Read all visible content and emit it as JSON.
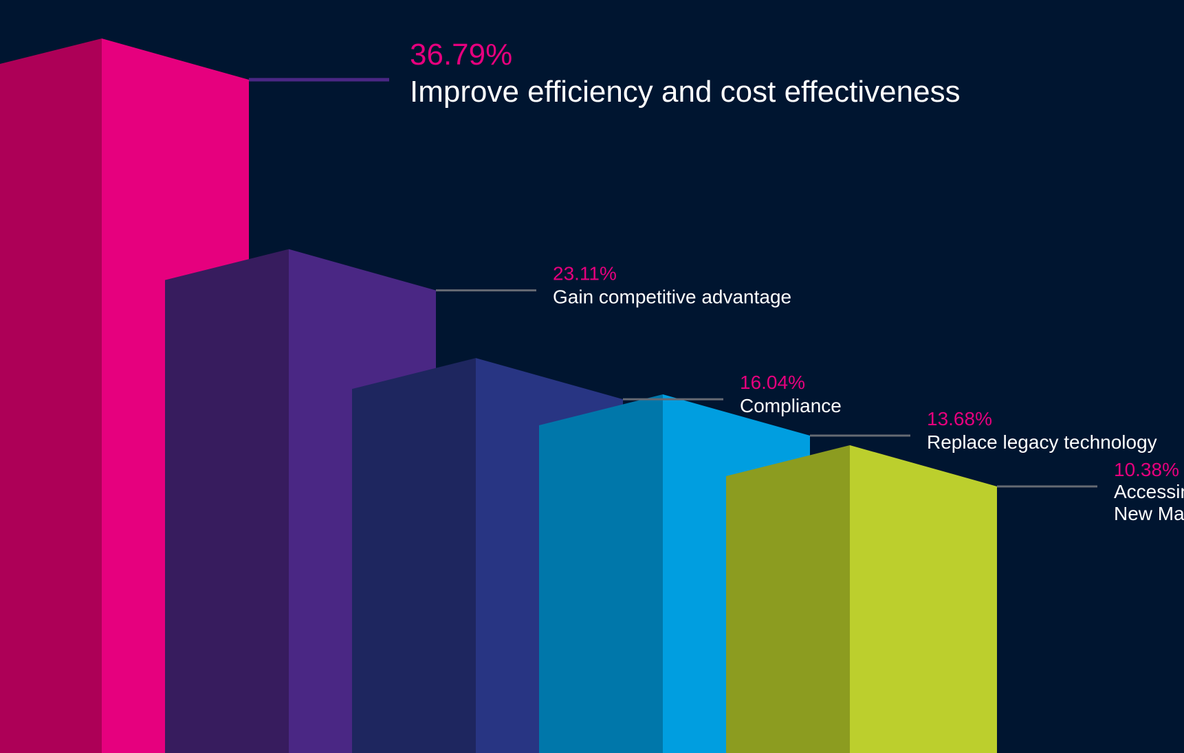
{
  "background": "#001530",
  "pct_color": "#e6007e",
  "label_color": "#ffffff",
  "leader_color": "#666a73",
  "chart_data": {
    "type": "bar",
    "title": "",
    "xlabel": "",
    "ylabel": "",
    "unit": "%",
    "categories": [
      "Improve efficiency and cost effectiveness",
      "Gain competitive advantage",
      "Compliance",
      "Replace legacy technology",
      "Accessing New Market"
    ],
    "values": [
      36.79,
      23.11,
      16.04,
      13.68,
      10.38
    ],
    "value_labels": [
      "36.79%",
      "23.11%",
      "16.04%",
      "13.68%",
      "10.38%"
    ],
    "label_lines": [
      [
        "Improve efficiency and cost effectiveness"
      ],
      [
        "Gain competitive advantage"
      ],
      [
        "Compliance"
      ],
      [
        "Replace legacy technology"
      ],
      [
        "Accessing",
        "New Market"
      ]
    ],
    "colors": [
      {
        "front": "#e6007e",
        "side": "#ad0057"
      },
      {
        "front": "#4a2784",
        "side": "#371c5e"
      },
      {
        "front": "#283583",
        "side": "#1e265f"
      },
      {
        "front": "#009ee0",
        "side": "#0077aa"
      },
      {
        "front": "#bccf2d",
        "side": "#8c9c20"
      }
    ],
    "grid": false,
    "legend": "none"
  }
}
